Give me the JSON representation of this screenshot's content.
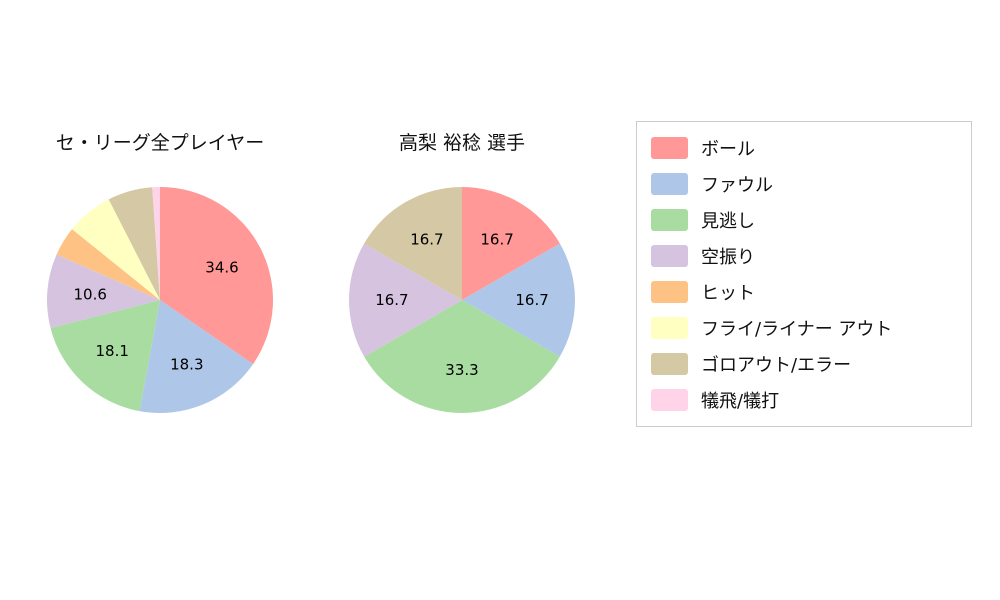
{
  "legend": {
    "items": [
      {
        "label": "ボール",
        "color": "#ff9896"
      },
      {
        "label": "ファウル",
        "color": "#aec7e8"
      },
      {
        "label": "見逃し",
        "color": "#a8dca0"
      },
      {
        "label": "空振り",
        "color": "#d5c3e0"
      },
      {
        "label": "ヒット",
        "color": "#ffc285"
      },
      {
        "label": "フライ/ライナー アウト",
        "color": "#ffffc2"
      },
      {
        "label": "ゴロアウト/エラー",
        "color": "#d4c9a4"
      },
      {
        "label": "犠飛/犠打",
        "color": "#ffd4e8"
      }
    ]
  },
  "chart_data": [
    {
      "type": "pie",
      "title": "セ・リーグ全プレイヤー",
      "start_angle": "12-oclock",
      "direction": "clockwise",
      "units": "percent",
      "slices": [
        {
          "name": "ボール",
          "value": 34.6,
          "label": "34.6",
          "color": "#ff9896"
        },
        {
          "name": "ファウル",
          "value": 18.3,
          "label": "18.3",
          "color": "#aec7e8"
        },
        {
          "name": "見逃し",
          "value": 18.1,
          "label": "18.1",
          "color": "#a8dca0"
        },
        {
          "name": "空振り",
          "value": 10.6,
          "label": "10.6",
          "color": "#d5c3e0"
        },
        {
          "name": "ヒット",
          "value": 4.2,
          "label": "",
          "color": "#ffc285"
        },
        {
          "name": "フライ/ライナー アウト",
          "value": 6.7,
          "label": "",
          "color": "#ffffc2"
        },
        {
          "name": "ゴロアウト/エラー",
          "value": 6.4,
          "label": "",
          "color": "#d4c9a4"
        },
        {
          "name": "犠飛/犠打",
          "value": 1.1,
          "label": "",
          "color": "#ffd4e8"
        }
      ]
    },
    {
      "type": "pie",
      "title": "高梨 裕稔  選手",
      "start_angle": "12-oclock",
      "direction": "clockwise",
      "units": "percent",
      "slices": [
        {
          "name": "ボール",
          "value": 16.7,
          "label": "16.7",
          "color": "#ff9896"
        },
        {
          "name": "ファウル",
          "value": 16.7,
          "label": "16.7",
          "color": "#aec7e8"
        },
        {
          "name": "見逃し",
          "value": 33.3,
          "label": "33.3",
          "color": "#a8dca0"
        },
        {
          "name": "空振り",
          "value": 16.7,
          "label": "16.7",
          "color": "#d5c3e0"
        },
        {
          "name": "ヒット",
          "value": 0,
          "label": "",
          "color": "#ffc285"
        },
        {
          "name": "フライ/ライナー アウト",
          "value": 0,
          "label": "",
          "color": "#ffffc2"
        },
        {
          "name": "ゴロアウト/エラー",
          "value": 16.7,
          "label": "16.7",
          "color": "#d4c9a4"
        },
        {
          "name": "犠飛/犠打",
          "value": 0,
          "label": "",
          "color": "#ffd4e8"
        }
      ]
    }
  ]
}
